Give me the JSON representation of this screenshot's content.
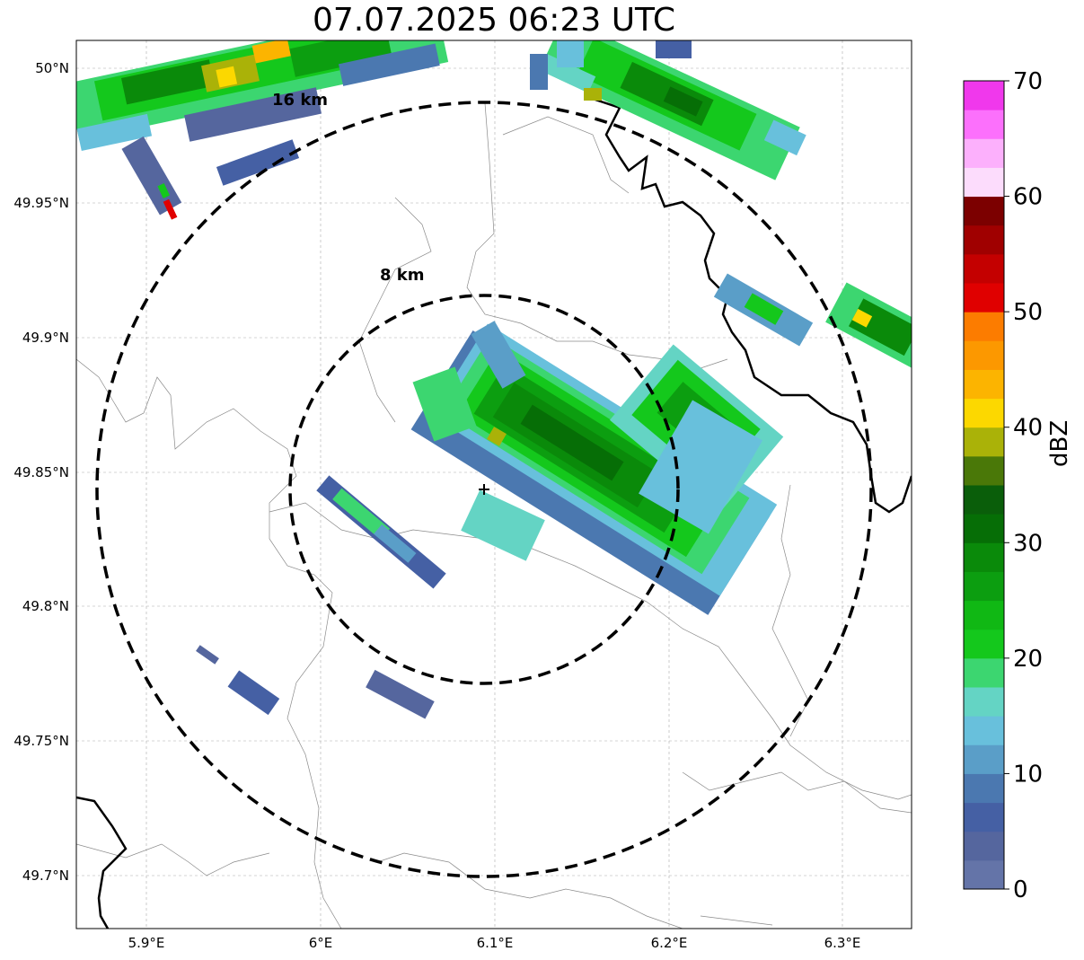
{
  "title": "07.07.2025 06:23 UTC",
  "colorbar": {
    "label": "dBZ",
    "ticks": [
      "0",
      "10",
      "20",
      "30",
      "40",
      "50",
      "60",
      "70"
    ],
    "colors": [
      "#6474a8",
      "#55669e",
      "#4560a4",
      "#4b78b0",
      "#5a9ec8",
      "#68c0dc",
      "#64d4c4",
      "#3cd670",
      "#14c81c",
      "#10b814",
      "#0c9e10",
      "#0a8a0a",
      "#066e06",
      "#0a5e0a",
      "#4a7808",
      "#aab208",
      "#fcd800",
      "#fcb400",
      "#fc9800",
      "#fc7c00",
      "#e00000",
      "#c40000",
      "#a00000",
      "#7c0000",
      "#fcdcfc",
      "#fcb0fc",
      "#fc70fc",
      "#f038ec"
    ]
  },
  "axes": {
    "x_ticks": [
      "5.9°E",
      "6°E",
      "6.1°E",
      "6.2°E",
      "6.3°E"
    ],
    "y_ticks": [
      "50°N",
      "49.95°N",
      "49.9°N",
      "49.85°N",
      "49.8°N",
      "49.75°N",
      "49.7°N"
    ]
  },
  "rings": [
    {
      "label": "8 km"
    },
    {
      "label": "16 km"
    }
  ]
}
